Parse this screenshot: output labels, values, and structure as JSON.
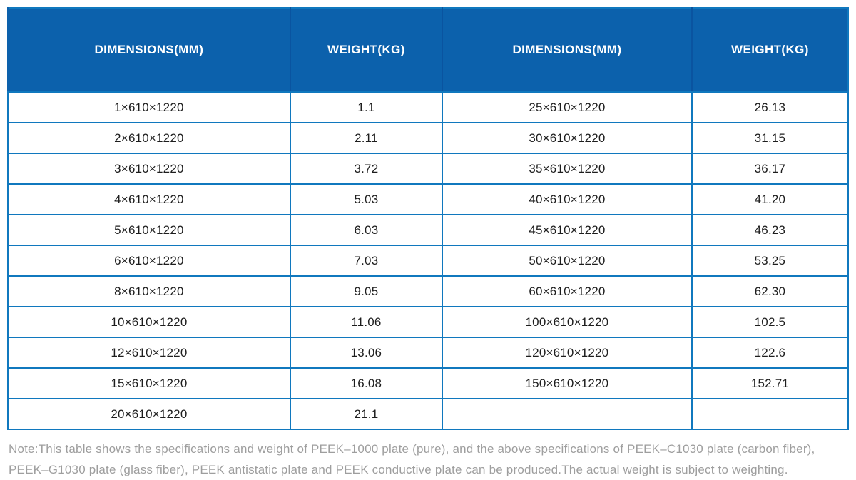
{
  "colors": {
    "header_bg": "#0c61ac",
    "header_text": "#ffffff",
    "header_divider": "#0a54a0",
    "grid_border": "#1078be",
    "cell_text": "#1d1d1d",
    "note_text": "#9e9e9e"
  },
  "table": {
    "columns": [
      "DIMENSIONS(MM)",
      "WEIGHT(KG)",
      "DIMENSIONS(MM)",
      "WEIGHT(KG)"
    ],
    "rows": [
      [
        "1×610×1220",
        "1.1",
        "25×610×1220",
        "26.13"
      ],
      [
        "2×610×1220",
        "2.11",
        "30×610×1220",
        "31.15"
      ],
      [
        "3×610×1220",
        "3.72",
        "35×610×1220",
        "36.17"
      ],
      [
        "4×610×1220",
        "5.03",
        "40×610×1220",
        "41.20"
      ],
      [
        "5×610×1220",
        "6.03",
        "45×610×1220",
        "46.23"
      ],
      [
        "6×610×1220",
        "7.03",
        "50×610×1220",
        "53.25"
      ],
      [
        "8×610×1220",
        "9.05",
        "60×610×1220",
        "62.30"
      ],
      [
        "10×610×1220",
        "11.06",
        "100×610×1220",
        "102.5"
      ],
      [
        "12×610×1220",
        "13.06",
        "120×610×1220",
        "122.6"
      ],
      [
        "15×610×1220",
        "16.08",
        "150×610×1220",
        "152.71"
      ],
      [
        "20×610×1220",
        "21.1",
        "",
        ""
      ]
    ]
  },
  "note": {
    "lines": [
      "Note:This table shows the specifications and weight of PEEK–1000 plate (pure), and the above specifications of PEEK–C1030 plate (carbon fiber),",
      "PEEK–G1030 plate (glass fiber), PEEK antistatic plate and PEEK conductive plate can be produced.The actual weight is subject to weighting."
    ]
  }
}
